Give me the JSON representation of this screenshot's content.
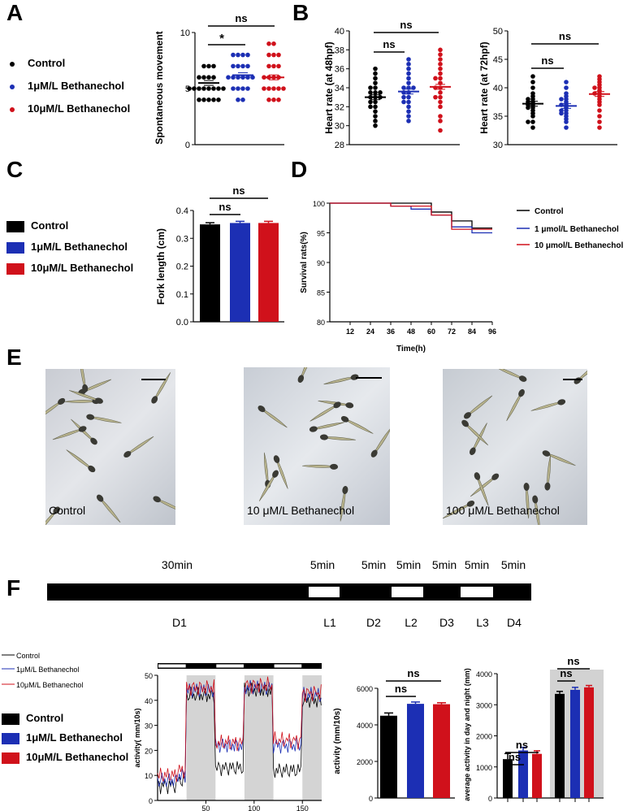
{
  "panels": {
    "A": "A",
    "B": "B",
    "C": "C",
    "D": "D",
    "E": "E",
    "F": "F"
  },
  "colors": {
    "control": "#000000",
    "low": "#1c2fb4",
    "high": "#d0111b"
  },
  "legend_a": [
    "Control",
    "1μM/L Bethanechol",
    "10μM/L Bethanechol"
  ],
  "legend_c": [
    "Control",
    "1μM/L Bethanechol",
    "10μM/L Bethanechol"
  ],
  "legend_d": [
    "Control",
    "1 μmol/L Bethanechol",
    "10 μmol/L Bethanechol"
  ],
  "legend_f_lines": [
    "Control",
    "1μM/L Bethanechol",
    "10μM/L Bethanechol"
  ],
  "legend_f_bars": [
    "Control",
    "1μM/L Bethanechol",
    "10μM/L Bethanechol"
  ],
  "sig": {
    "ns": "ns",
    "star": "*"
  },
  "chart_data": [
    {
      "id": "A",
      "type": "scatter",
      "ylabel": "Spontaneous movement",
      "ylim": [
        0,
        10
      ],
      "yticks": [
        0,
        5,
        10
      ],
      "series": [
        {
          "name": "Control",
          "mean": 5.5,
          "values": [
            4,
            4,
            4,
            4,
            4,
            5,
            5,
            5,
            5,
            5,
            5,
            5,
            5,
            6,
            6,
            6,
            6,
            7,
            7,
            7
          ]
        },
        {
          "name": "1μM/L Bethanechol",
          "mean": 6.2,
          "values": [
            4,
            4,
            5,
            5,
            5,
            5,
            6,
            6,
            6,
            6,
            6,
            6,
            7,
            7,
            7,
            7,
            8,
            8,
            8,
            8
          ]
        },
        {
          "name": "10μM/L Bethanechol",
          "mean": 6.0,
          "values": [
            4,
            4,
            4,
            5,
            5,
            5,
            5,
            5,
            6,
            6,
            6,
            6,
            7,
            7,
            7,
            8,
            8,
            8,
            9,
            9
          ]
        }
      ]
    },
    {
      "id": "B1",
      "type": "scatter",
      "ylabel": "Heart rate (at 48hpf)",
      "ylim": [
        28,
        40
      ],
      "yticks": [
        28,
        30,
        32,
        34,
        36,
        38,
        40
      ],
      "series": [
        {
          "name": "Control",
          "mean": 33.0,
          "values": [
            30,
            30.5,
            31,
            31.5,
            32,
            32,
            32.5,
            32.5,
            33,
            33,
            33,
            33.5,
            33.5,
            33.5,
            34,
            34,
            34.5,
            35,
            35.5,
            36
          ]
        },
        {
          "name": "1μM/L Bethanechol",
          "mean": 33.6,
          "values": [
            30.5,
            31,
            31.5,
            32,
            32.5,
            32.5,
            33,
            33,
            33.5,
            33.5,
            34,
            34,
            34,
            34.5,
            35,
            35.5,
            36,
            36.5,
            37
          ]
        },
        {
          "name": "10μM/L Bethanechol",
          "mean": 34.1,
          "values": [
            29.5,
            30.5,
            31,
            32,
            32.5,
            33,
            33,
            33.5,
            34,
            34,
            34.5,
            35,
            35,
            35.5,
            36,
            36.5,
            37,
            37.5,
            38
          ]
        }
      ]
    },
    {
      "id": "B2",
      "type": "scatter",
      "ylabel": "Heart rate (at 72hpf)",
      "ylim": [
        30,
        50
      ],
      "yticks": [
        30,
        35,
        40,
        45,
        50
      ],
      "series": [
        {
          "name": "Control",
          "mean": 37.2,
          "values": [
            33,
            34,
            34,
            35,
            35.5,
            36,
            36.5,
            36.5,
            37,
            37,
            37.5,
            37.5,
            38,
            38,
            38.5,
            39,
            40,
            41,
            42
          ]
        },
        {
          "name": "1μM/L Bethanechol",
          "mean": 36.8,
          "values": [
            33,
            34,
            34.5,
            35,
            35.5,
            35.5,
            36,
            36,
            36.5,
            37,
            37,
            37.5,
            38,
            38,
            38.5,
            39,
            40,
            41
          ]
        },
        {
          "name": "10μM/L Bethanechol",
          "mean": 38.9,
          "values": [
            33,
            34,
            35,
            36,
            37,
            37.5,
            38,
            38.5,
            39,
            39,
            39.5,
            40,
            40,
            40.5,
            41,
            41.5,
            42
          ]
        }
      ]
    },
    {
      "id": "C",
      "type": "bar",
      "ylabel": "Fork length (cm)",
      "ylim": [
        0,
        0.4
      ],
      "yticks": [
        "0.0",
        "0.1",
        "0.2",
        "0.3",
        "0.4"
      ],
      "categories": [
        "Control",
        "1μM/L Bethanechol",
        "10μM/L Bethanechol"
      ],
      "values": [
        0.35,
        0.355,
        0.355
      ],
      "errors": [
        0.006,
        0.006,
        0.006
      ]
    },
    {
      "id": "D",
      "type": "line",
      "ylabel": "Survival rats(%)",
      "xlabel": "Time(h)",
      "ylim": [
        80,
        100
      ],
      "yticks": [
        80,
        85,
        90,
        95,
        100
      ],
      "xticks": [
        12,
        24,
        36,
        48,
        60,
        72,
        84,
        96
      ],
      "series": [
        {
          "name": "Control",
          "x": [
            0,
            36,
            60,
            72,
            84,
            96
          ],
          "y": [
            100,
            100,
            98.5,
            97,
            95.8,
            95.8
          ]
        },
        {
          "name": "1 μmol/L Bethanechol",
          "x": [
            0,
            36,
            48,
            60,
            72,
            84,
            96
          ],
          "y": [
            100,
            99.5,
            99,
            98,
            96,
            95,
            95
          ]
        },
        {
          "name": "10 μmol/L Bethanechol",
          "x": [
            0,
            36,
            60,
            72,
            84,
            96
          ],
          "y": [
            100,
            99.5,
            98,
            95.6,
            95.6,
            95.6
          ]
        }
      ]
    },
    {
      "id": "F_timeline",
      "type": "other",
      "blocks": [
        {
          "label": "D1",
          "dur": "30min",
          "light": false
        },
        {
          "label": "L1",
          "dur": "5min",
          "light": true
        },
        {
          "label": "D2",
          "dur": "5min",
          "light": false
        },
        {
          "label": "L2",
          "dur": "5min",
          "light": true
        },
        {
          "label": "D3",
          "dur": "5min",
          "light": false
        },
        {
          "label": "L3",
          "dur": "5min",
          "light": true
        },
        {
          "label": "D4",
          "dur": "5min",
          "light": false
        }
      ]
    },
    {
      "id": "F_trace",
      "type": "line",
      "ylabel": "activity( mm/10s)",
      "ylim": [
        0,
        50
      ],
      "yticks": [
        0,
        10,
        20,
        30,
        40,
        50
      ],
      "xticks": [
        50,
        100,
        150
      ],
      "xlim": [
        0,
        170
      ]
    },
    {
      "id": "F_bar1",
      "type": "bar",
      "ylabel": "activity (mm/10s)",
      "ylim": [
        0,
        6000
      ],
      "yticks": [
        0,
        2000,
        4000,
        6000
      ],
      "values": [
        4500,
        5150,
        5130
      ],
      "errors": [
        150,
        100,
        80
      ]
    },
    {
      "id": "F_bar2",
      "type": "bar",
      "ylabel": "average activity in day and night (mm)",
      "ylim": [
        0,
        4000
      ],
      "yticks": [
        0,
        1000,
        2000,
        3000,
        4000
      ],
      "groups": [
        {
          "values": [
            1250,
            1530,
            1420
          ],
          "errors": [
            180,
            100,
            100
          ]
        },
        {
          "values": [
            3350,
            3480,
            3560
          ],
          "errors": [
            80,
            80,
            60
          ]
        }
      ]
    }
  ],
  "photos": [
    {
      "caption": "Control"
    },
    {
      "caption": "10 μM/L Bethanechol"
    },
    {
      "caption": "100 μM/L Bethanechol"
    }
  ]
}
